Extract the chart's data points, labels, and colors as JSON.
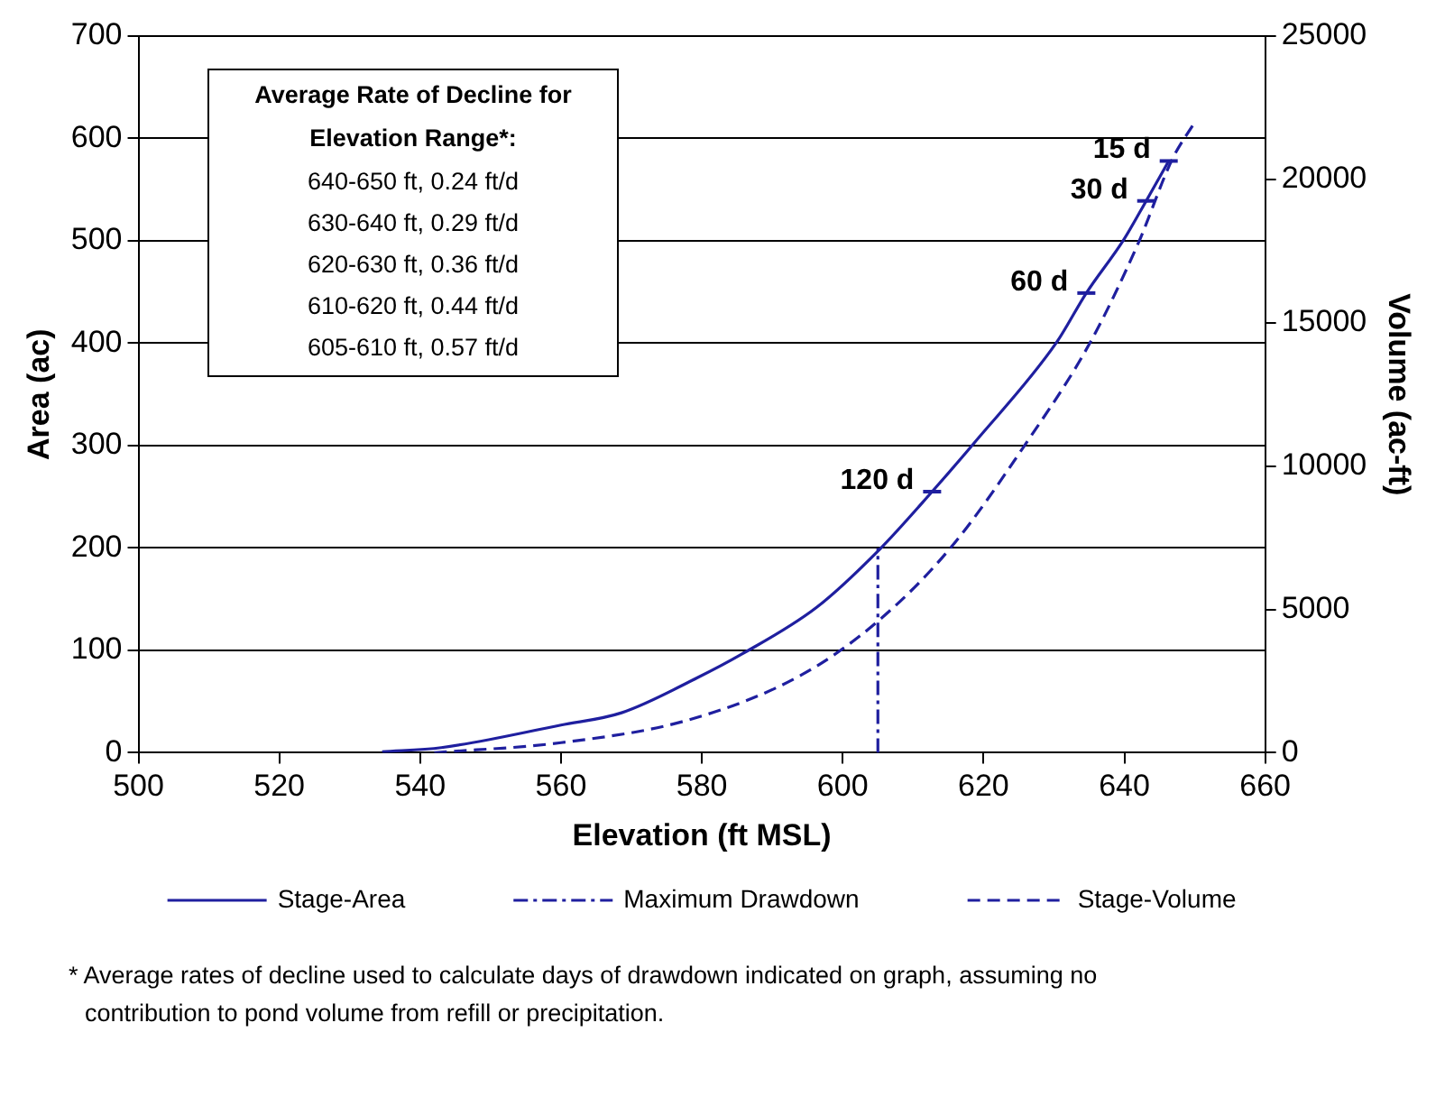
{
  "chart_data": {
    "type": "line",
    "xlabel": "Elevation (ft MSL)",
    "ylabel": "Area (ac)",
    "y2label": "Volume (ac-ft)",
    "xlim": [
      500,
      660
    ],
    "xticks": [
      500,
      520,
      540,
      560,
      580,
      600,
      620,
      640,
      660
    ],
    "ylim": [
      0,
      700
    ],
    "yticks": [
      0,
      100,
      200,
      300,
      400,
      500,
      600,
      700
    ],
    "y2lim": [
      0,
      25000
    ],
    "y2ticks": [
      0,
      5000,
      10000,
      15000,
      20000,
      25000
    ],
    "grid": "y",
    "legend": "bottom",
    "marker": "none",
    "series": [
      {
        "name": "Stage-Area",
        "color": "#1f1f9f",
        "line_style": "solid",
        "x": [
          534.6,
          543,
          560,
          568.6,
          579.3,
          585.6,
          596.3,
          605.3,
          612.7,
          618.6,
          630.3,
          634.6,
          639.9,
          643.1,
          646.3
        ],
        "values": [
          1,
          5,
          27,
          39,
          73,
          96,
          142,
          199,
          255,
          302,
          400,
          449,
          501,
          539,
          578
        ]
      },
      {
        "name": "Maximum Drawdown",
        "color": "#1f1f9f",
        "line_style": "dotted",
        "x": [
          605,
          605
        ],
        "values": [
          0,
          200
        ]
      },
      {
        "name": "Stage-Volume",
        "color": "#1f1f9f",
        "line_style": "dashed",
        "axis": "y2",
        "x": [
          542,
          560,
          578.2,
          594.2,
          605.3,
          615.4,
          626,
          635.1,
          642,
          646.8,
          650
        ],
        "values": [
          0,
          350,
          1150,
          2720,
          4650,
          7170,
          10780,
          14290,
          17790,
          20700,
          22000
        ]
      }
    ],
    "annotations": [
      "Average Rate of Decline for Elevation Range*:",
      "640-650 ft, 0.24 ft/d",
      "630-640 ft, 0.29 ft/d",
      "620-630 ft, 0.36 ft/d",
      "610-620 ft, 0.44 ft/d",
      "605-610 ft, 0.57 ft/d",
      {
        "text": "120 d",
        "x": 612.7,
        "y": 255
      },
      {
        "text": "60 d",
        "x": 634.6,
        "y": 449
      },
      {
        "text": "30 d",
        "x": 643.1,
        "y": 539
      },
      {
        "text": "15 d",
        "x": 646.3,
        "y": 578
      },
      "* Average rates of decline used to calculate days of drawdown indicated on graph, assuming no contribution to pond volume from refill or precipitation."
    ]
  }
}
